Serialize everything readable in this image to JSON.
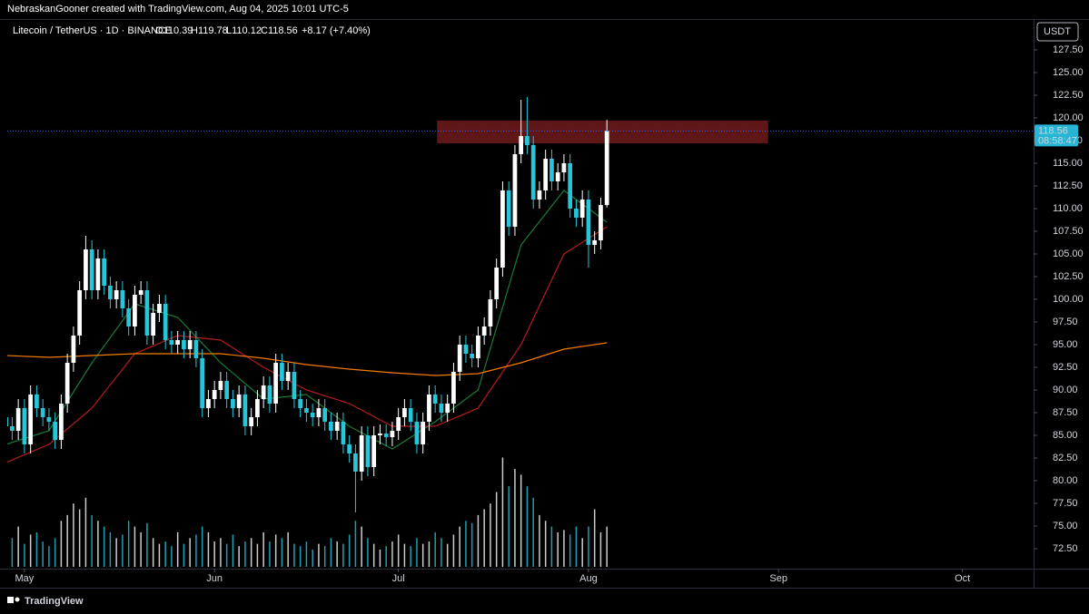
{
  "header": {
    "credit": "NebraskanGooner created with TradingView.com, Aug 04, 2025 10:01 UTC-5",
    "symbol": "Litecoin / TetherUS · 1D · BINANCE",
    "ohlc": [
      "O110.39",
      "H119.78",
      "L110.12",
      "C118.56"
    ],
    "change": "+8.17 (+7.40%)",
    "currency": "USDT",
    "countdown": "08:58:47"
  },
  "footer": {
    "brand": "TradingView"
  },
  "chart_data": {
    "type": "candlestick",
    "up_color": "#ffffff",
    "down_color": "#26c6da",
    "xlim": [
      0.2,
      167.6
    ],
    "xticks": [
      {
        "value": 3,
        "label": "May"
      },
      {
        "value": 34,
        "label": "Jun"
      },
      {
        "value": 64,
        "label": "Jul"
      },
      {
        "value": 95,
        "label": "Aug"
      },
      {
        "value": 126,
        "label": "Sep"
      },
      {
        "value": 156,
        "label": "Oct"
      }
    ],
    "ylim": [
      70.3,
      130.8
    ],
    "yticks": [
      {
        "value": 72.5,
        "label": "72.50"
      },
      {
        "value": 75,
        "label": "75.00"
      },
      {
        "value": 77.5,
        "label": "77.50"
      },
      {
        "value": 80,
        "label": "80.00"
      },
      {
        "value": 82.5,
        "label": "82.50"
      },
      {
        "value": 85,
        "label": "85.00"
      },
      {
        "value": 87.5,
        "label": "87.50"
      },
      {
        "value": 90,
        "label": "90.00"
      },
      {
        "value": 92.5,
        "label": "92.50"
      },
      {
        "value": 95,
        "label": "95.00"
      },
      {
        "value": 97.5,
        "label": "97.50"
      },
      {
        "value": 100,
        "label": "100.00"
      },
      {
        "value": 102.5,
        "label": "102.50"
      },
      {
        "value": 105,
        "label": "105.00"
      },
      {
        "value": 107.5,
        "label": "107.50"
      },
      {
        "value": 110,
        "label": "110.00"
      },
      {
        "value": 112.5,
        "label": "112.50"
      },
      {
        "value": 115,
        "label": "115.00"
      },
      {
        "value": 117.5,
        "label": "117.50"
      },
      {
        "value": 120,
        "label": "120.00"
      },
      {
        "value": 122.5,
        "label": "122.50"
      },
      {
        "value": 125,
        "label": "125.00"
      },
      {
        "value": 127.5,
        "label": "127.50"
      }
    ],
    "open": [
      87,
      86,
      85.5,
      88,
      84,
      89.5,
      88,
      87,
      86.5,
      84.5,
      88.5,
      93,
      96,
      101,
      105.5,
      101,
      104.5,
      101.5,
      100,
      101,
      99,
      97,
      100.5,
      101,
      96,
      98.5,
      99.5,
      95.5,
      95,
      95.5,
      94.5,
      95.5,
      93.5,
      88,
      89,
      90,
      91,
      89,
      88,
      89.5,
      86,
      87,
      89,
      90.5,
      88.5,
      93,
      91,
      92,
      89,
      88,
      87.5,
      87,
      88,
      86.5,
      85.5,
      86.5,
      84,
      83,
      81,
      85,
      81.5,
      85,
      85.2,
      84.8,
      85.5,
      87,
      88,
      86.5,
      84,
      86.5,
      89.5,
      88.5,
      87.5,
      88.5,
      92,
      95,
      94,
      93.5,
      96,
      97,
      100,
      103.5,
      112,
      108,
      116,
      118,
      117,
      111,
      112,
      115.5,
      113,
      114,
      115,
      110,
      109,
      111,
      106,
      106.5,
      110.39
    ],
    "high": [
      88,
      87,
      89,
      89,
      90.5,
      90.5,
      89,
      88,
      87.5,
      89.5,
      94,
      97,
      102,
      107,
      106.5,
      105.5,
      105.5,
      102.5,
      102,
      102,
      100,
      101.5,
      102,
      102,
      99.5,
      100.5,
      100.5,
      96.5,
      96.5,
      96.5,
      96.5,
      96.5,
      94.5,
      90,
      91,
      92,
      92,
      90,
      90.5,
      90.5,
      88,
      90,
      91.5,
      91.5,
      94,
      94,
      93,
      93,
      90,
      89,
      88.5,
      89,
      89,
      87.5,
      87.5,
      87.5,
      85,
      84,
      86,
      86,
      86,
      86.2,
      86.2,
      86.5,
      88,
      89,
      89,
      87.5,
      87.5,
      90.5,
      90.5,
      89.5,
      89.5,
      93,
      96,
      96,
      95,
      97,
      98,
      101,
      104.5,
      113,
      113,
      117,
      122,
      122.3,
      118,
      113,
      116.5,
      116.5,
      115,
      116,
      116,
      111,
      112,
      112,
      107.5,
      111.2,
      119.78
    ],
    "low": [
      85,
      84.5,
      84.5,
      83,
      83,
      87,
      86,
      85.5,
      83.5,
      83.5,
      87.5,
      92,
      95,
      100,
      100,
      100,
      100.5,
      99,
      99,
      98,
      96,
      96,
      99.5,
      95,
      95,
      97.5,
      94.5,
      94,
      94,
      93.5,
      93.5,
      92.5,
      87,
      87,
      88,
      89,
      88,
      87,
      87,
      85,
      85,
      86,
      88,
      87.5,
      87.5,
      90,
      90,
      88,
      87,
      86.5,
      86,
      86,
      85.5,
      84.5,
      84.5,
      83,
      82,
      76.5,
      80,
      80.5,
      80.5,
      84,
      83.8,
      83.8,
      84.5,
      86,
      85.5,
      83,
      83,
      85.5,
      87.5,
      86.5,
      86.5,
      87.5,
      91,
      93,
      92.5,
      92.5,
      95,
      96,
      99,
      102.5,
      107,
      107,
      115,
      116,
      110,
      110,
      111,
      112,
      112,
      113,
      109,
      108,
      108,
      103.5,
      105,
      105.5,
      110.12
    ],
    "close": [
      86,
      85.5,
      88,
      84,
      89.5,
      88,
      87,
      86.5,
      84.5,
      88.5,
      93,
      96,
      101,
      105.5,
      101,
      104.5,
      101.5,
      100,
      101,
      99,
      97,
      100.5,
      101,
      96,
      98.5,
      99.5,
      95.5,
      95,
      95.5,
      94.5,
      95.5,
      93.5,
      88,
      89,
      90,
      91,
      89,
      88,
      89.5,
      86,
      87,
      89,
      90.5,
      88.5,
      93,
      91,
      92,
      89,
      88,
      87.5,
      87,
      88,
      86.5,
      85.5,
      86.5,
      84,
      83,
      81,
      85,
      81.5,
      85,
      85.2,
      84.8,
      85.5,
      87,
      88,
      86.5,
      84,
      86.5,
      89.5,
      88.5,
      87.5,
      88.5,
      92,
      95,
      94,
      93.5,
      96,
      97,
      100,
      103.5,
      112,
      108,
      116,
      118,
      117,
      111,
      112,
      115.5,
      113,
      114,
      115,
      110,
      109,
      111,
      106,
      106.5,
      110.39,
      118.56
    ],
    "volume": [
      30,
      25,
      35,
      20,
      28,
      30,
      22,
      18,
      25,
      40,
      45,
      55,
      50,
      60,
      45,
      40,
      35,
      30,
      25,
      28,
      40,
      35,
      30,
      38,
      25,
      20,
      22,
      18,
      30,
      20,
      25,
      28,
      35,
      30,
      22,
      25,
      20,
      28,
      18,
      22,
      25,
      20,
      30,
      22,
      28,
      25,
      30,
      20,
      18,
      22,
      15,
      20,
      18,
      25,
      22,
      20,
      28,
      40,
      35,
      25,
      20,
      15,
      18,
      22,
      28,
      20,
      18,
      25,
      20,
      22,
      30,
      25,
      20,
      28,
      35,
      40,
      38,
      45,
      50,
      55,
      65,
      95,
      70,
      85,
      80,
      70,
      60,
      45,
      40,
      35,
      30,
      32,
      28,
      35,
      25,
      35,
      50,
      30,
      35
    ],
    "vlim": [
      0,
      130
    ],
    "overlays": [
      {
        "color": "#1b7a3a",
        "x": [
          0,
          7,
          14,
          21,
          28,
          35,
          42,
          49,
          56,
          63,
          70,
          77,
          84,
          91,
          98
        ],
        "values": [
          84,
          85.5,
          93,
          99.5,
          98,
          93,
          89,
          89.5,
          86,
          83.5,
          86.5,
          90,
          106,
          112,
          108.5
        ]
      },
      {
        "color": "#b71c1c",
        "x": [
          0,
          7,
          14,
          21,
          28,
          35,
          42,
          49,
          56,
          63,
          70,
          77,
          84,
          91,
          98
        ],
        "values": [
          82,
          84,
          88,
          94,
          96,
          95.5,
          92.5,
          90,
          88.5,
          86,
          86,
          88,
          95,
          105,
          108
        ]
      },
      {
        "color": "#f57c00",
        "x": [
          0,
          7,
          14,
          21,
          28,
          35,
          42,
          49,
          56,
          63,
          70,
          77,
          84,
          91,
          98
        ],
        "values": [
          93.8,
          93.6,
          93.8,
          94,
          94,
          94,
          93.5,
          92.8,
          92.3,
          91.9,
          91.6,
          91.8,
          93,
          94.5,
          95.2
        ]
      }
    ],
    "zone": {
      "x": [
        70.3,
        124.3
      ],
      "y": [
        117.2,
        119.7
      ],
      "color": "#7f1d1d"
    },
    "last_color": "#26b5d4"
  }
}
